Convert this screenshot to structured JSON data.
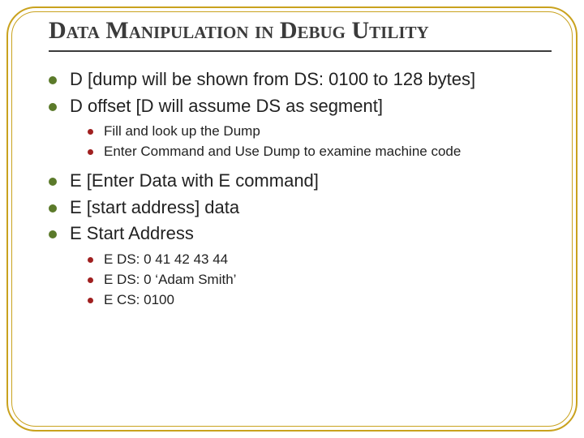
{
  "title": "Data Manipulation in Debug Utility",
  "title_fontsize": 30,
  "title_color": "#3b3b3b",
  "rule_color": "#3b3b3b",
  "border_color": "#c9a21e",
  "background_color": "#ffffff",
  "bullet_lvl1_color": "#5b7a2a",
  "bullet_lvl2_color": "#a02020",
  "lvl1_fontsize": 22,
  "lvl2_fontsize": 17,
  "items": [
    {
      "text": "D [dump will be shown from DS: 0100 to 128 bytes]"
    },
    {
      "text": "D offset  [D will assume DS as segment]",
      "children": [
        {
          "text": "Fill and look up the Dump"
        },
        {
          "text": "Enter Command and Use Dump to examine machine code"
        }
      ]
    },
    {
      "text": "E [Enter Data with E command]"
    },
    {
      "text": "E [start address] data"
    },
    {
      "text": "E Start Address",
      "children": [
        {
          "text": "E DS: 0 41 42 43 44"
        },
        {
          "text": "E DS: 0 ‘Adam Smith’"
        },
        {
          "text": "E CS: 0100"
        }
      ]
    }
  ]
}
